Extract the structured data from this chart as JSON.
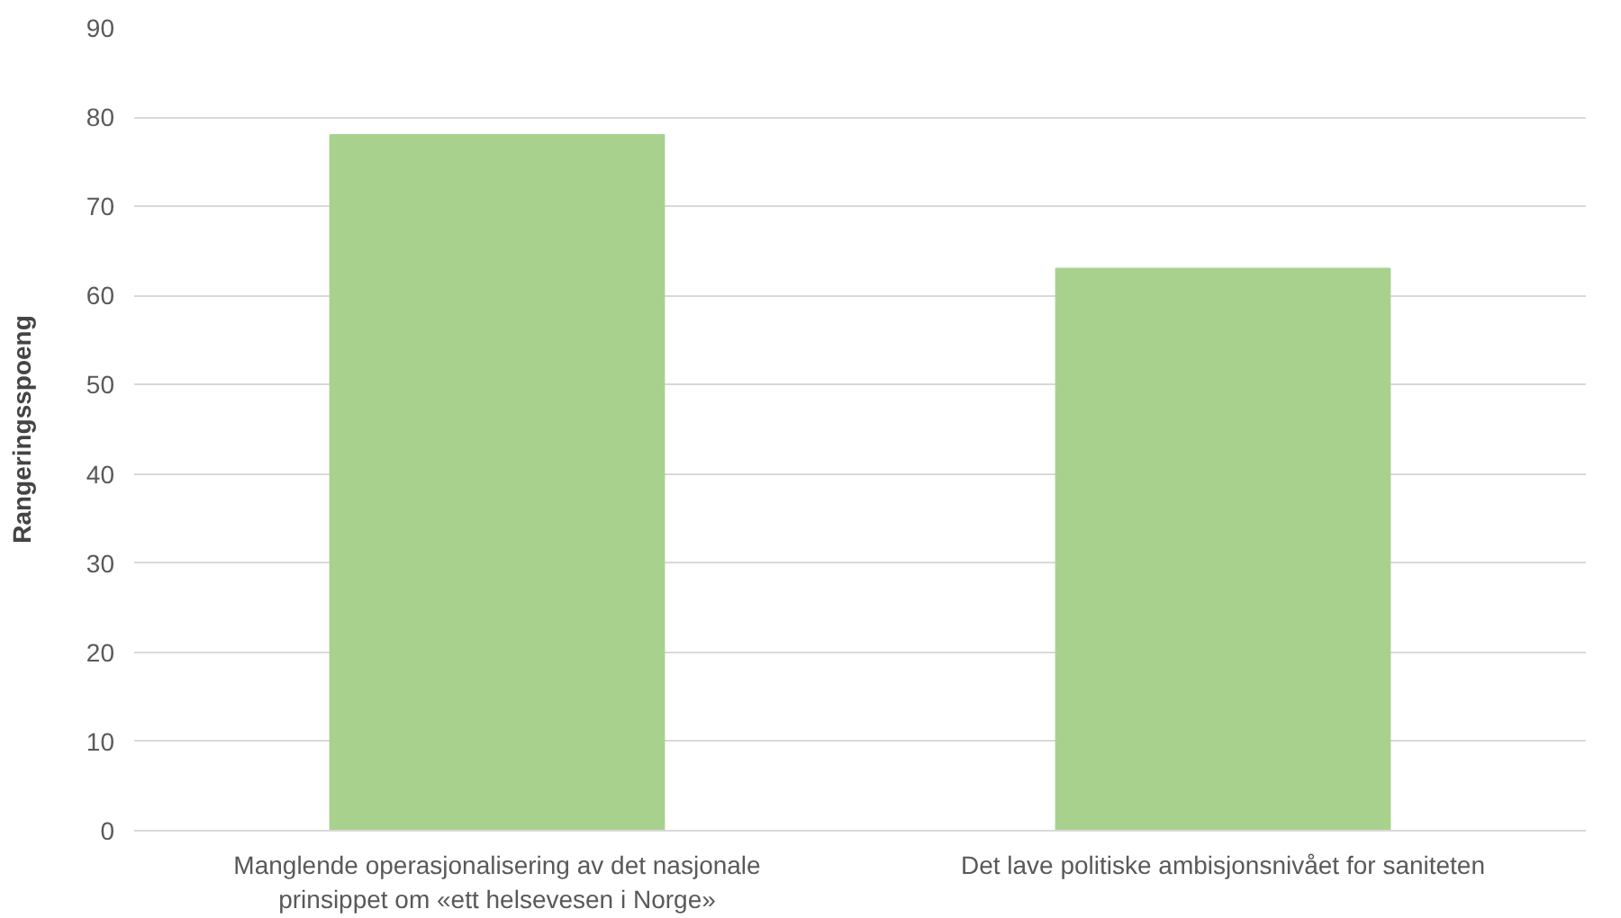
{
  "chart_data": {
    "type": "bar",
    "ylabel": "Rangeringsspoeng",
    "categories": [
      "Manglende operasjonalisering av det nasjonale prinsippet om «ett helsevesen i Norge»",
      "Det lave politiske ambisjonsnivået for saniteten"
    ],
    "values": [
      78,
      63
    ],
    "color": "#a9d18e",
    "ylim": [
      0,
      90
    ],
    "yticks": [
      0,
      10,
      20,
      30,
      40,
      50,
      60,
      70,
      80,
      90
    ],
    "grid": "y"
  }
}
